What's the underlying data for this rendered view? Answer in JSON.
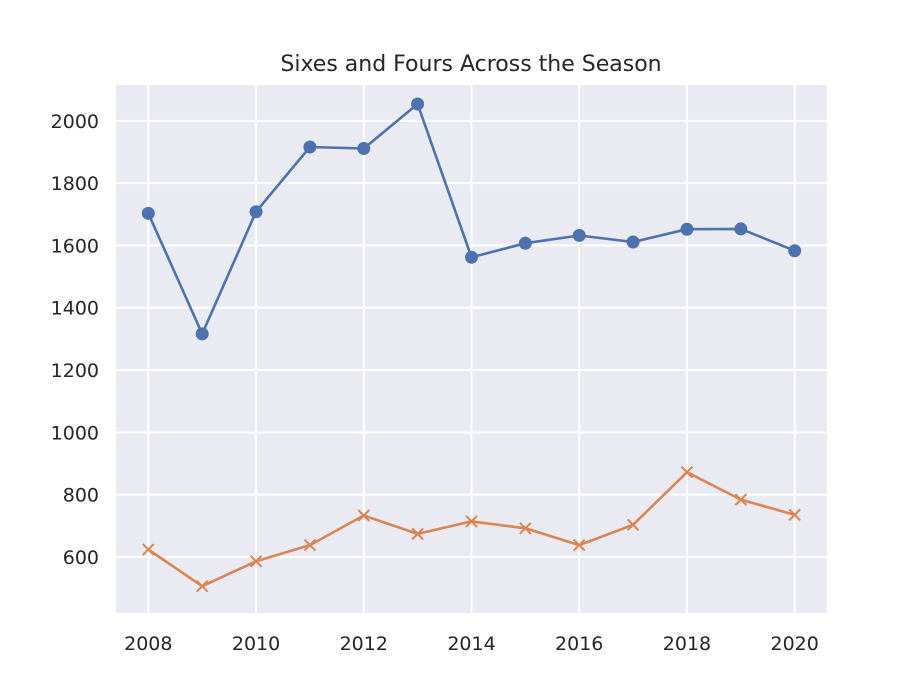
{
  "chart_data": {
    "type": "line",
    "title": "Sixes and Fours Across the Season",
    "xlabel": "",
    "ylabel": "",
    "x": [
      2008,
      2009,
      2010,
      2011,
      2012,
      2013,
      2014,
      2015,
      2016,
      2017,
      2018,
      2019,
      2020
    ],
    "x_ticks": [
      2008,
      2010,
      2012,
      2014,
      2016,
      2018,
      2020
    ],
    "y_ticks": [
      600,
      800,
      1000,
      1200,
      1400,
      1600,
      1800,
      2000
    ],
    "xlim": [
      2007.4,
      2020.6
    ],
    "ylim": [
      420,
      2115
    ],
    "grid": true,
    "background": "#eaeaf2",
    "series": [
      {
        "color": "#4c72b0",
        "marker": "circle",
        "values": [
          1703,
          1316,
          1708,
          1916,
          1911,
          2054,
          1562,
          1607,
          1632,
          1611,
          1652,
          1653,
          1583
        ]
      },
      {
        "color": "#dd8452",
        "marker": "x",
        "values": [
          624,
          506,
          586,
          638,
          733,
          674,
          714,
          692,
          638,
          703,
          872,
          784,
          735
        ]
      }
    ]
  }
}
